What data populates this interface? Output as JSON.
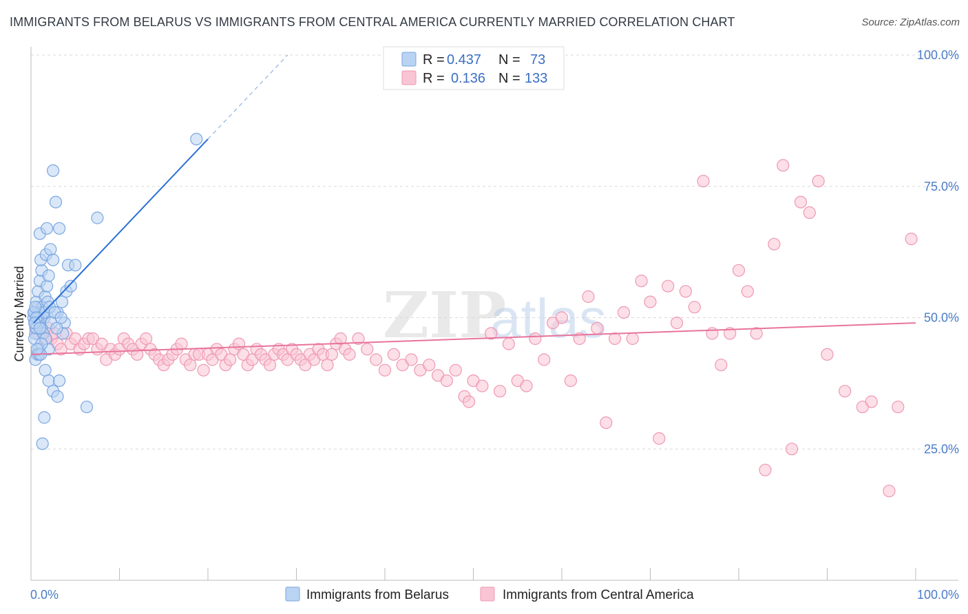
{
  "title": "IMMIGRANTS FROM BELARUS VS IMMIGRANTS FROM CENTRAL AMERICA CURRENTLY MARRIED CORRELATION CHART",
  "source": "Source: ZipAtlas.com",
  "watermark": {
    "zip": "ZIP",
    "atlas": "atlas"
  },
  "legend": {
    "r_label": "R =",
    "n_label": "N =",
    "rows": [
      {
        "r": "0.437",
        "n": "73",
        "color": "#b9d3f3",
        "stroke": "#7aa6e0"
      },
      {
        "r": "0.136",
        "n": "133",
        "color": "#f9c4d4",
        "stroke": "#ee98b4"
      }
    ]
  },
  "chart_data": {
    "type": "scatter",
    "xlabel": "",
    "ylabel": "Currently Married",
    "xlim": [
      0,
      100
    ],
    "ylim": [
      0,
      100
    ],
    "x_tick_labels": [
      "0.0%",
      "100.0%"
    ],
    "y_tick_labels": [
      "25.0%",
      "50.0%",
      "75.0%",
      "100.0%"
    ],
    "y_ticks": [
      25,
      50,
      75,
      100
    ],
    "series": [
      {
        "name": "Immigrants from Belarus",
        "color": "#7aa6e0",
        "fill": "#b9d3f3",
        "trend": {
          "x0": 0.3,
          "y0": 49.0,
          "x1": 20.0,
          "y1": 84.0,
          "dash_to_x": 29.0
        },
        "points": [
          [
            0.3,
            50
          ],
          [
            0.4,
            51
          ],
          [
            0.5,
            49
          ],
          [
            0.6,
            48
          ],
          [
            0.7,
            50
          ],
          [
            0.8,
            52
          ],
          [
            0.5,
            47
          ],
          [
            0.9,
            49
          ],
          [
            1.0,
            51
          ],
          [
            0.4,
            46
          ],
          [
            0.6,
            53
          ],
          [
            0.8,
            55
          ],
          [
            1.0,
            57
          ],
          [
            1.2,
            59
          ],
          [
            1.1,
            61
          ],
          [
            0.9,
            44
          ],
          [
            0.7,
            43
          ],
          [
            0.5,
            42
          ],
          [
            1.3,
            52
          ],
          [
            1.5,
            50
          ],
          [
            1.6,
            54
          ],
          [
            1.8,
            56
          ],
          [
            2.0,
            58
          ],
          [
            1.2,
            48
          ],
          [
            1.4,
            47
          ],
          [
            1.7,
            62
          ],
          [
            2.2,
            63
          ],
          [
            2.5,
            61
          ],
          [
            1.0,
            66
          ],
          [
            1.8,
            67
          ],
          [
            3.2,
            67
          ],
          [
            2.8,
            72
          ],
          [
            2.5,
            78
          ],
          [
            3.0,
            51
          ],
          [
            3.5,
            53
          ],
          [
            4.0,
            55
          ],
          [
            4.5,
            56
          ],
          [
            4.2,
            60
          ],
          [
            5.0,
            60
          ],
          [
            3.8,
            49
          ],
          [
            2.0,
            44
          ],
          [
            1.6,
            40
          ],
          [
            2.0,
            38
          ],
          [
            2.5,
            36
          ],
          [
            3.0,
            35
          ],
          [
            3.2,
            38
          ],
          [
            1.5,
            31
          ],
          [
            1.3,
            26
          ],
          [
            6.3,
            33
          ],
          [
            7.5,
            69
          ],
          [
            18.7,
            84
          ],
          [
            1.1,
            50
          ],
          [
            1.4,
            51
          ],
          [
            1.9,
            53
          ],
          [
            2.3,
            49
          ],
          [
            0.6,
            48
          ],
          [
            0.8,
            50
          ],
          [
            1.5,
            51
          ],
          [
            2.1,
            52
          ],
          [
            2.7,
            51
          ],
          [
            3.4,
            50
          ],
          [
            3.6,
            47
          ],
          [
            2.9,
            48
          ],
          [
            1.7,
            46
          ],
          [
            1.2,
            45
          ],
          [
            0.9,
            43
          ],
          [
            1.1,
            43
          ],
          [
            0.7,
            44
          ],
          [
            0.3,
            51
          ],
          [
            0.5,
            52
          ],
          [
            0.6,
            50
          ],
          [
            0.4,
            49
          ],
          [
            1.0,
            48
          ]
        ]
      },
      {
        "name": "Immigrants from Central America",
        "color": "#ee98b4",
        "fill": "#f9c4d4",
        "trend": {
          "x0": 0.0,
          "y0": 43.0,
          "x1": 100.0,
          "y1": 49.0
        },
        "points": [
          [
            0.5,
            48
          ],
          [
            0.8,
            47
          ],
          [
            1.0,
            49
          ],
          [
            1.3,
            47
          ],
          [
            1.6,
            46
          ],
          [
            2.0,
            48
          ],
          [
            2.3,
            46
          ],
          [
            2.7,
            47
          ],
          [
            3.0,
            45
          ],
          [
            3.4,
            44
          ],
          [
            4.0,
            47
          ],
          [
            4.5,
            45
          ],
          [
            5.0,
            46
          ],
          [
            5.5,
            44
          ],
          [
            6.0,
            45
          ],
          [
            6.5,
            46
          ],
          [
            7.0,
            46
          ],
          [
            7.5,
            44
          ],
          [
            8.0,
            45
          ],
          [
            8.5,
            42
          ],
          [
            9.0,
            44
          ],
          [
            9.5,
            43
          ],
          [
            10.0,
            44
          ],
          [
            10.5,
            46
          ],
          [
            11.0,
            45
          ],
          [
            11.5,
            44
          ],
          [
            12.0,
            43
          ],
          [
            12.5,
            45
          ],
          [
            13.0,
            46
          ],
          [
            13.5,
            44
          ],
          [
            14.0,
            43
          ],
          [
            14.5,
            42
          ],
          [
            15.0,
            41
          ],
          [
            15.5,
            42
          ],
          [
            16.0,
            43
          ],
          [
            16.5,
            44
          ],
          [
            17.0,
            45
          ],
          [
            17.5,
            42
          ],
          [
            18.0,
            41
          ],
          [
            18.5,
            43
          ],
          [
            19.0,
            43
          ],
          [
            19.5,
            40
          ],
          [
            20.0,
            43
          ],
          [
            20.5,
            42
          ],
          [
            21.0,
            44
          ],
          [
            21.5,
            43
          ],
          [
            22.0,
            41
          ],
          [
            22.5,
            42
          ],
          [
            23.0,
            44
          ],
          [
            23.5,
            45
          ],
          [
            24.0,
            43
          ],
          [
            24.5,
            41
          ],
          [
            25.0,
            42
          ],
          [
            25.5,
            44
          ],
          [
            26.0,
            43
          ],
          [
            26.5,
            42
          ],
          [
            27.0,
            41
          ],
          [
            27.5,
            43
          ],
          [
            28.0,
            44
          ],
          [
            28.5,
            43
          ],
          [
            29.0,
            42
          ],
          [
            29.5,
            44
          ],
          [
            30.0,
            43
          ],
          [
            30.5,
            42
          ],
          [
            31.0,
            41
          ],
          [
            31.5,
            43
          ],
          [
            32.0,
            42
          ],
          [
            32.5,
            44
          ],
          [
            33.0,
            43
          ],
          [
            33.5,
            41
          ],
          [
            34.0,
            43
          ],
          [
            34.5,
            45
          ],
          [
            35.0,
            46
          ],
          [
            35.5,
            44
          ],
          [
            36.0,
            43
          ],
          [
            37.0,
            46
          ],
          [
            38.0,
            44
          ],
          [
            39.0,
            42
          ],
          [
            40.0,
            40
          ],
          [
            41.0,
            43
          ],
          [
            42.0,
            41
          ],
          [
            43.0,
            42
          ],
          [
            44.0,
            40
          ],
          [
            45.0,
            41
          ],
          [
            46.0,
            39
          ],
          [
            47.0,
            38
          ],
          [
            48.0,
            40
          ],
          [
            49.0,
            35
          ],
          [
            49.5,
            34
          ],
          [
            50.0,
            38
          ],
          [
            51.0,
            37
          ],
          [
            52.0,
            47
          ],
          [
            53.0,
            36
          ],
          [
            54.0,
            45
          ],
          [
            55.0,
            38
          ],
          [
            56.0,
            37
          ],
          [
            57.0,
            46
          ],
          [
            58.0,
            42
          ],
          [
            59.0,
            49
          ],
          [
            60.0,
            50
          ],
          [
            61.0,
            38
          ],
          [
            62.0,
            46
          ],
          [
            63.0,
            54
          ],
          [
            64.0,
            48
          ],
          [
            65.0,
            30
          ],
          [
            66.0,
            46
          ],
          [
            67.0,
            51
          ],
          [
            68.0,
            46
          ],
          [
            69.0,
            57
          ],
          [
            70.0,
            53
          ],
          [
            71.0,
            27
          ],
          [
            72.0,
            56
          ],
          [
            73.0,
            49
          ],
          [
            74.0,
            55
          ],
          [
            75.0,
            52
          ],
          [
            76.0,
            76
          ],
          [
            77.0,
            47
          ],
          [
            78.0,
            41
          ],
          [
            79.0,
            47
          ],
          [
            80.0,
            59
          ],
          [
            81.0,
            55
          ],
          [
            82.0,
            47
          ],
          [
            83.0,
            21
          ],
          [
            84.0,
            64
          ],
          [
            85.0,
            79
          ],
          [
            86.0,
            25
          ],
          [
            87.0,
            72
          ],
          [
            88.0,
            70
          ],
          [
            89.0,
            76
          ],
          [
            90.0,
            43
          ],
          [
            92.0,
            36
          ],
          [
            94.0,
            33
          ],
          [
            95.0,
            34
          ],
          [
            97.0,
            17
          ],
          [
            98.0,
            33
          ],
          [
            99.5,
            65
          ]
        ]
      }
    ]
  },
  "bottom_legend": [
    {
      "label": "Immigrants from Belarus",
      "color": "#b9d3f3",
      "stroke": "#7aa6e0"
    },
    {
      "label": "Immigrants from Central America",
      "color": "#f9c4d4",
      "stroke": "#ee98b4"
    }
  ]
}
